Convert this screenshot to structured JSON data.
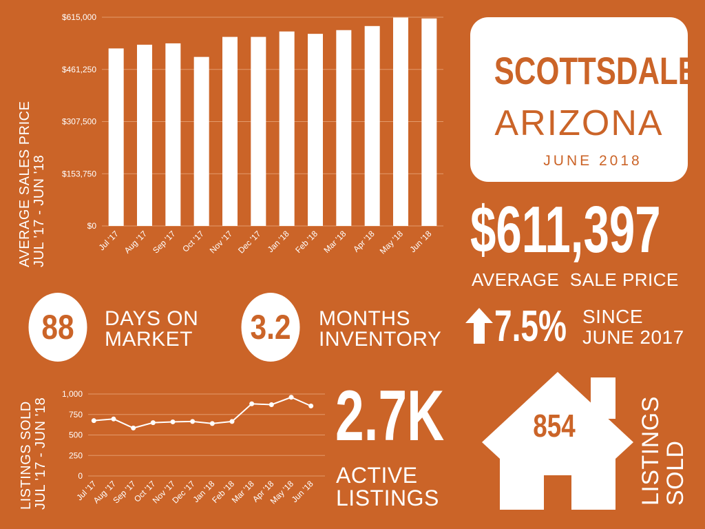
{
  "header": {
    "city": "SCOTTSDALE",
    "state": "ARIZONA",
    "date": "JUNE 2018"
  },
  "avg_price": {
    "value": "$611,397",
    "label_a": "AVERAGE",
    "label_b": "SALE PRICE"
  },
  "stats": {
    "dom_value": "88",
    "dom_line1": "DAYS ON",
    "dom_line2": "MARKET",
    "inv_value": "3.2",
    "inv_line1": "MONTHS",
    "inv_line2": "INVENTORY",
    "change_value": "7.5%",
    "change_line1": "SINCE",
    "change_line2": "JUNE 2017"
  },
  "active": {
    "value": "2.7K",
    "line1": "ACTIVE",
    "line2": "LISTINGS"
  },
  "sold": {
    "value": "854",
    "line1": "LISTINGS",
    "line2": "SOLD"
  },
  "bar_axis_label": {
    "line1": "AVERAGE SALES PRICE",
    "line2": "JUL '17 - JUN '18"
  },
  "line_axis_label": {
    "line1": "LISTINGS SOLD",
    "line2": "JUL '17 - JUN '18"
  },
  "colors": {
    "background": "#cb6428",
    "foreground": "#ffffff"
  },
  "icons": [
    "arrow-up-icon",
    "house-icon"
  ],
  "chart_data": [
    {
      "type": "bar",
      "categories": [
        "Jul '17",
        "Aug '17",
        "Sep '17",
        "Oct '17",
        "Nov '17",
        "Dec '17",
        "Jan '18",
        "Feb '18",
        "Mar '18",
        "Apr '18",
        "May '18",
        "Jun '18"
      ],
      "values": [
        523000,
        534000,
        538000,
        498000,
        557000,
        557000,
        573000,
        566000,
        577000,
        589000,
        614000,
        611397
      ],
      "ylim": [
        0,
        615000
      ],
      "yticks": [
        "$0",
        "$153,750",
        "$307,500",
        "$461,250",
        "$615,000"
      ],
      "ytick_values": [
        0,
        153750,
        307500,
        461250,
        615000
      ],
      "grid": true
    },
    {
      "type": "line",
      "categories": [
        "Jul '17",
        "Aug '17",
        "Sep '17",
        "Oct '17",
        "Nov '17",
        "Dec '17",
        "Jan '18",
        "Feb '18",
        "Mar '18",
        "Apr '18",
        "May '18",
        "Jun '18"
      ],
      "values": [
        675,
        695,
        585,
        650,
        660,
        665,
        640,
        665,
        880,
        870,
        960,
        854
      ],
      "ylim": [
        0,
        1000
      ],
      "yticks": [
        "0",
        "250",
        "500",
        "750",
        "1,000"
      ],
      "ytick_values": [
        0,
        250,
        500,
        750,
        1000
      ],
      "grid": true
    }
  ]
}
